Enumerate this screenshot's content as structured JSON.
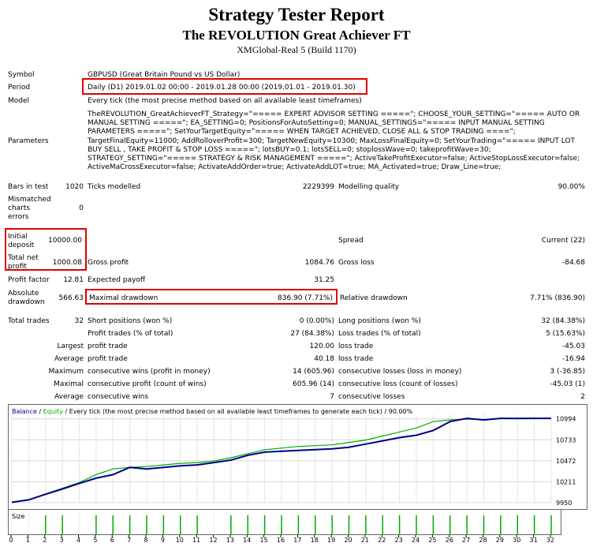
{
  "header": {
    "title": "Strategy Tester Report",
    "subtitle": "The REVOLUTION Great Achiever FT",
    "server": "XMGlobal-Real 5 (Build 1170)"
  },
  "info": {
    "symbol_label": "Symbol",
    "symbol_value": "GBPUSD (Great Britain Pound vs US Dollar)",
    "period_label": "Period",
    "period_value": "Daily (D1) 2019.01.02 00:00 - 2019.01.28 00:00 (2019.01.01 - 2019.01.30)",
    "model_label": "Model",
    "model_value": "Every tick (the most precise method based on all available least timeframes)",
    "params_label": "Parameters",
    "params_value": "TheREVOLUTION_GreatAchieverFT_Strategy=\"===== EXPERT ADVISOR SETTING =====\"; CHOOSE_YOUR_SETTING=\"===== AUTO OR MANUAL SETTING =====\"; EA_SETTING=0; PositionsForAutoSetting=0; MANUAL_SETTINGS=\"===== INPUT MANUAL SETTING PARAMETERS =====\"; SetYourTargetEquity=\"===== WHEN TARGET ACHIEVED, CLOSE ALL & STOP TRADING ====\"; TargetFinalEquity=11000; AddRolloverProfit=300; TargetNewEquity=10300; MaxLossFinalEquity=0; SetYourTrading=\"===== INPUT LOT BUY SELL , TAKE PROFIT & STOP LOSS =====\"; lotsBUY=0.1; lotsSELL=0; stoplossWave=0; takeprofitWave=30; STRATEGY_SETTING=\"===== STRATEGY & RISK MANAGEMENT =====\"; ActiveTakeProfitExecutor=false; ActiveStopLossExecutor=false; ActiveMaCrossExecutor=false; ActivateAddOrder=true; ActivateAddLOT=true; MA_Activated=true; Draw_Line=true;"
  },
  "stats": {
    "bars_label": "Bars in test",
    "bars_value": "1020",
    "ticks_label": "Ticks modelled",
    "ticks_value": "2229399",
    "quality_label": "Modelling quality",
    "quality_value": "90.00%",
    "mismatch_label_1": "Mismatched",
    "mismatch_label_2": "charts",
    "mismatch_label_3": "errors",
    "mismatch_value": "0",
    "init_dep_label_1": "Initial",
    "init_dep_label_2": "deposit",
    "init_dep_value": "10000.00",
    "spread_label": "Spread",
    "spread_value": "Current (22)",
    "net_label_1": "Total net",
    "net_label_2": "profit",
    "net_value": "1000.08",
    "gross_profit_label": "Gross profit",
    "gross_profit_value": "1084.76",
    "gross_loss_label": "Gross loss",
    "gross_loss_value": "-84.68",
    "pf_label": "Profit factor",
    "pf_value": "12.81",
    "payoff_label": "Expected payoff",
    "payoff_value": "31.25",
    "abs_dd_label_1": "Absolute",
    "abs_dd_label_2": "drawdown",
    "abs_dd_value": "566.63",
    "max_dd_label": "Maximal drawdown",
    "max_dd_value": "836.90 (7.71%)",
    "rel_dd_label": "Relative drawdown",
    "rel_dd_value": "7.71% (836.90)",
    "trades_label": "Total trades",
    "trades_value": "32",
    "short_label": "Short positions (won %)",
    "short_value": "0 (0.00%)",
    "long_label": "Long positions (won %)",
    "long_value": "32 (84.38%)",
    "pt_label": "Profit trades (% of total)",
    "pt_value": "27 (84.38%)",
    "lt_label": "Loss trades (% of total)",
    "lt_value": "5 (15.63%)",
    "largest": "Largest",
    "average": "Average",
    "maximum": "Maximum",
    "maximal": "Maximal",
    "profit_trade": "profit trade",
    "loss_trade": "loss trade",
    "lg_profit": "120.00",
    "lg_loss": "-45.03",
    "av_profit": "40.18",
    "av_loss": "-16.94",
    "cw_money_label": "consecutive wins (profit in money)",
    "cw_money_value": "14 (605.96)",
    "cl_money_label": "consecutive losses (loss in money)",
    "cl_money_value": "3 (-36.85)",
    "cp_count_label": "consecutive profit (count of wins)",
    "cp_count_value": "605.96 (14)",
    "cl_count_label": "consecutive loss (count of losses)",
    "cl_count_value": "-45.03 (1)",
    "cw_label": "consecutive wins",
    "cw_value": "7",
    "cl_label": "consecutive losses",
    "cl_value": "2"
  },
  "chart_header": {
    "balance": "Balance",
    "sep1": " / ",
    "equity": "Equity",
    "rest": " / Every tick (the most precise method based on all available least timeframes to generate each tick) / 90.00%"
  },
  "colors": {
    "balance": "#00008b",
    "equity": "#00aa00",
    "highlight": "#e00000",
    "size": "#00aa00"
  },
  "chart_data": {
    "type": "line",
    "x": [
      0,
      1,
      2,
      3,
      4,
      5,
      6,
      7,
      8,
      9,
      10,
      11,
      12,
      13,
      14,
      15,
      16,
      17,
      18,
      19,
      20,
      21,
      22,
      23,
      24,
      25,
      26,
      27,
      28,
      29,
      30,
      31,
      32
    ],
    "ylim": [
      9950,
      11050
    ],
    "yticks": [
      9950,
      10211,
      10472,
      10733,
      10994
    ],
    "series": [
      {
        "name": "Balance",
        "values": [
          9955,
          9985,
          10055,
          10120,
          10190,
          10255,
          10300,
          10390,
          10370,
          10390,
          10410,
          10420,
          10450,
          10480,
          10540,
          10580,
          10590,
          10600,
          10610,
          10620,
          10640,
          10680,
          10720,
          10760,
          10790,
          10850,
          10960,
          11000,
          10980,
          11000,
          10998,
          11000,
          11000
        ]
      },
      {
        "name": "Equity",
        "values": [
          9955,
          9990,
          10060,
          10130,
          10200,
          10300,
          10370,
          10390,
          10400,
          10420,
          10440,
          10450,
          10470,
          10510,
          10560,
          10610,
          10630,
          10650,
          10660,
          10670,
          10700,
          10730,
          10780,
          10830,
          10880,
          10960,
          10980,
          10990,
          10985,
          11000,
          10998,
          11000,
          11000
        ]
      }
    ],
    "size_label": "Size",
    "size_values": [
      0,
      0,
      1,
      1,
      0,
      1,
      1,
      1,
      1,
      1,
      1,
      1,
      0,
      1,
      1,
      1,
      1,
      1,
      1,
      1,
      1,
      1,
      1,
      1,
      1,
      1,
      1,
      1,
      1,
      1,
      1,
      1,
      1
    ],
    "x_tick_labels": [
      "0",
      "1",
      "2",
      "3",
      "4",
      "5",
      "6",
      "7",
      "8",
      "9",
      "10",
      "11",
      "12",
      "13",
      "14",
      "15",
      "16",
      "17",
      "18",
      "19",
      "20",
      "21",
      "22",
      "23",
      "24",
      "25",
      "26",
      "27",
      "28",
      "29",
      "30",
      "31",
      "32"
    ]
  }
}
